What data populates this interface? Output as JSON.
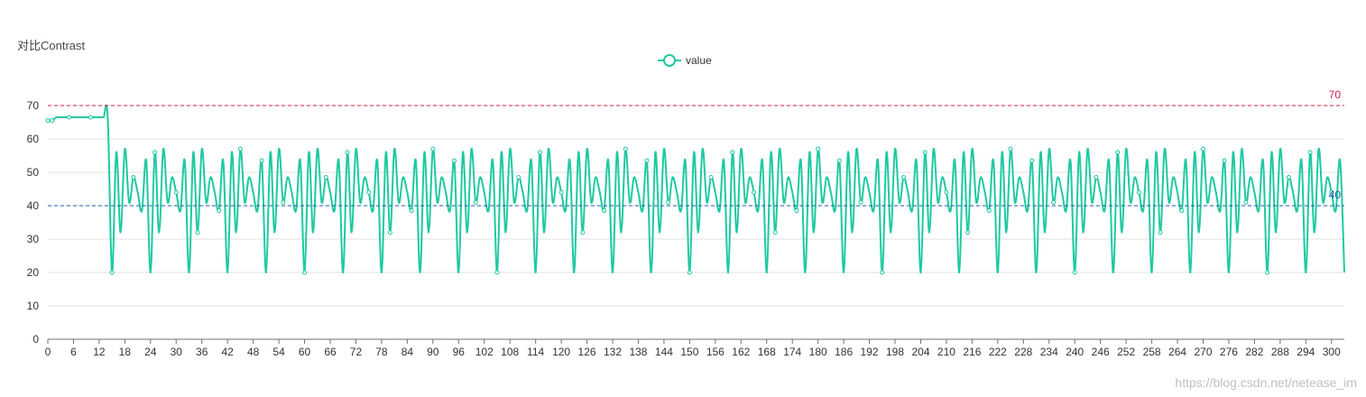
{
  "chart_data": {
    "type": "line",
    "title": "对比Contrast",
    "legend": {
      "position": "top-center",
      "entries": [
        "value"
      ]
    },
    "xlabel": "",
    "ylabel": "",
    "xlim": [
      0,
      303
    ],
    "ylim": [
      0,
      70
    ],
    "grid": true,
    "x_ticks": [
      0,
      6,
      12,
      18,
      24,
      30,
      36,
      42,
      48,
      54,
      60,
      66,
      72,
      78,
      84,
      90,
      96,
      102,
      108,
      114,
      120,
      126,
      132,
      138,
      144,
      150,
      156,
      162,
      168,
      174,
      180,
      186,
      192,
      198,
      204,
      210,
      216,
      222,
      228,
      234,
      240,
      246,
      252,
      258,
      264,
      270,
      276,
      282,
      288,
      294,
      300
    ],
    "y_ticks": [
      0,
      10,
      20,
      30,
      40,
      50,
      60,
      70
    ],
    "mark_lines": [
      {
        "value": 70,
        "label": "70",
        "color": "#d21e4b"
      },
      {
        "value": 40,
        "label": "40",
        "color": "#1e5fa8"
      }
    ],
    "series": [
      {
        "name": "value",
        "color": "#1fc9a2",
        "description_of_values": "stays at about 66 for x=0..14, then repeats a cycle every ~9 units: dip to ~20, rise to ~56, fall to ~32, rise to ~57, small oscillation between ~38 and ~49",
        "x": [
          0,
          1,
          2,
          3,
          4,
          5,
          6,
          7,
          8,
          9,
          10,
          11,
          12,
          13,
          14,
          15,
          16,
          17,
          18,
          19,
          20,
          21,
          22,
          23
        ],
        "values": [
          65.5,
          65.5,
          66.5,
          66.5,
          66.5,
          66.5,
          66.5,
          66.5,
          66.5,
          66.5,
          66.5,
          66.5,
          66.5,
          66.5,
          66.5,
          20,
          56,
          32,
          57,
          41,
          48.5,
          44,
          38.5,
          53.5
        ]
      }
    ],
    "cycle": {
      "start": 15,
      "period": 9,
      "shape": [
        20,
        56,
        32,
        57,
        41,
        48.5,
        44,
        38.5,
        53.5
      ],
      "end": 303,
      "end_value": 20
    },
    "colors": {
      "accent": "#1fc9a2",
      "grid": "#e0e0e0",
      "axis": "#6e7079"
    }
  },
  "watermark": "https://blog.csdn.net/netease_im"
}
